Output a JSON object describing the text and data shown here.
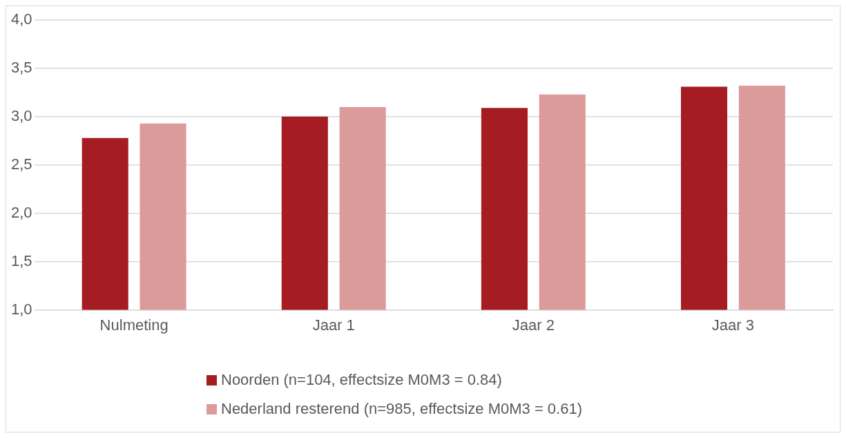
{
  "chart_data": {
    "type": "bar",
    "categories": [
      "Nulmeting",
      "Jaar 1",
      "Jaar 2",
      "Jaar 3"
    ],
    "series": [
      {
        "name": "Noorden (n=104, effectsize M0M3 = 0.84)",
        "color": "#a51c22",
        "values": [
          2.78,
          3.0,
          3.09,
          3.31
        ]
      },
      {
        "name": "Nederland resterend (n=985, effectsize M0M3 = 0.61)",
        "color": "#dc9b9b",
        "values": [
          2.93,
          3.1,
          3.23,
          3.32
        ]
      }
    ],
    "ylim": [
      1,
      4
    ],
    "yticks": [
      {
        "value": 1,
        "label": "1,0"
      },
      {
        "value": 1.5,
        "label": "1,5"
      },
      {
        "value": 2,
        "label": "2,0"
      },
      {
        "value": 2.5,
        "label": "2,5"
      },
      {
        "value": 3,
        "label": "3,0"
      },
      {
        "value": 3.5,
        "label": "3,5"
      },
      {
        "value": 4,
        "label": "4,0"
      }
    ],
    "grid": "y",
    "legend": "bottom"
  }
}
